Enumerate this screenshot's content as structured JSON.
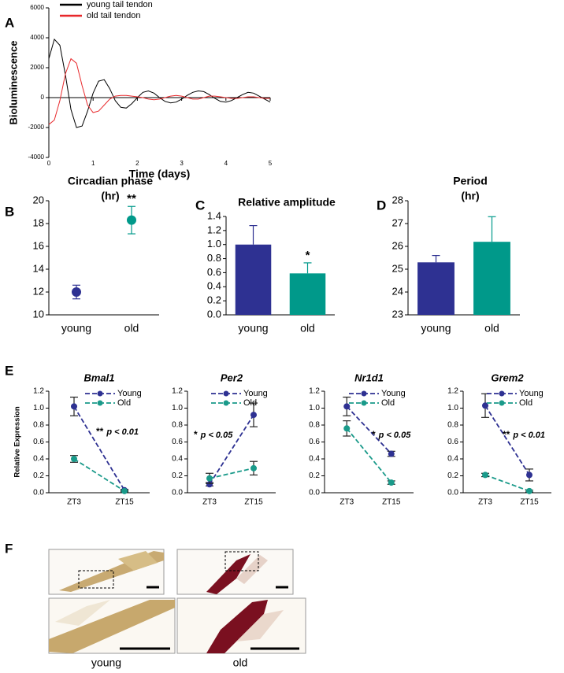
{
  "chart_data": [
    {
      "type": "line",
      "panel": "A",
      "xlabel": "Time (days)",
      "ylabel": "Bioluminescence",
      "x": [
        0,
        0.125,
        0.25,
        0.375,
        0.5,
        0.625,
        0.75,
        0.875,
        1,
        1.125,
        1.25,
        1.375,
        1.5,
        1.625,
        1.75,
        1.875,
        2,
        2.125,
        2.25,
        2.375,
        2.5,
        2.625,
        2.75,
        2.875,
        3,
        3.125,
        3.25,
        3.375,
        3.5,
        3.625,
        3.75,
        3.875,
        4,
        4.125,
        4.25,
        4.375,
        4.5,
        4.625,
        4.75,
        4.875,
        5
      ],
      "series": [
        {
          "name": "young tail tendon",
          "color": "#000000",
          "values": [
            2600,
            3900,
            3500,
            1500,
            -800,
            -2000,
            -1900,
            -900,
            300,
            1100,
            1200,
            600,
            -200,
            -650,
            -700,
            -400,
            0,
            350,
            450,
            300,
            0,
            -250,
            -350,
            -300,
            -100,
            150,
            350,
            450,
            400,
            200,
            -50,
            -250,
            -300,
            -200,
            0,
            200,
            350,
            300,
            100,
            -100,
            -300
          ]
        },
        {
          "name": "old tail tendon",
          "color": "#e8282b",
          "values": [
            -1800,
            -1500,
            -200,
            1600,
            2600,
            2300,
            800,
            -500,
            -1000,
            -900,
            -500,
            -100,
            100,
            150,
            150,
            100,
            50,
            0,
            -100,
            -150,
            -100,
            0,
            100,
            150,
            100,
            0,
            -100,
            -100,
            0,
            100,
            100,
            50,
            0,
            -50,
            -50,
            0,
            50,
            50,
            0,
            -50,
            -50
          ]
        }
      ],
      "xlim": [
        0,
        5
      ],
      "xticks": [
        0,
        1,
        2,
        3,
        4,
        5
      ],
      "ylim": [
        -4000,
        6000
      ],
      "yticks": [
        -4000,
        -2000,
        0,
        2000,
        4000,
        6000
      ]
    },
    {
      "type": "dot",
      "panel": "B",
      "title": "Circadian phase",
      "subtitle": "(hr)",
      "categories": [
        "young",
        "old"
      ],
      "values": [
        12.0,
        18.3
      ],
      "errors": [
        0.6,
        1.2
      ],
      "colors": [
        "#2e3192",
        "#00998a"
      ],
      "stars": [
        null,
        "**"
      ],
      "ylim": [
        10,
        20
      ],
      "yticks": [
        10,
        12,
        14,
        16,
        18,
        20
      ]
    },
    {
      "type": "bar",
      "panel": "C",
      "title": "Relative amplitude",
      "categories": [
        "young",
        "old"
      ],
      "values": [
        1.0,
        0.59
      ],
      "errors": [
        0.27,
        0.15
      ],
      "colors": [
        "#2e3192",
        "#00998a"
      ],
      "stars": [
        null,
        "*"
      ],
      "ylim": [
        0,
        1.4
      ],
      "yticks": [
        {
          "value": 0,
          "label": "0.0"
        },
        0.2,
        0.4,
        0.6,
        0.8,
        {
          "value": 1,
          "label": "1.0"
        },
        1.2,
        1.4
      ]
    },
    {
      "type": "bar",
      "panel": "D",
      "title": "Period",
      "subtitle": "(hr)",
      "categories": [
        "young",
        "old"
      ],
      "values": [
        25.3,
        26.2
      ],
      "errors": [
        0.3,
        1.1
      ],
      "colors": [
        "#2e3192",
        "#00998a"
      ],
      "ylim": [
        23,
        28
      ],
      "yticks": [
        23,
        24,
        25,
        26,
        27,
        28
      ]
    },
    {
      "type": "expr",
      "panel": "E",
      "title": "Bmal1",
      "ylabel": "Relative Expression",
      "stars": "**",
      "p_label": "p < 0.01",
      "categories": [
        "ZT3",
        "ZT15"
      ],
      "series": [
        {
          "name": "Young",
          "color": "#2e3192",
          "values": [
            1.02,
            0.03
          ],
          "errors": [
            0.11,
            0.01
          ]
        },
        {
          "name": "Old",
          "color": "#1a9a8a",
          "values": [
            0.4,
            0.02
          ],
          "errors": [
            0.04,
            0.01
          ]
        }
      ],
      "ylim": [
        0,
        1.2
      ],
      "yticks": [
        {
          "value": 0,
          "label": "0.0"
        },
        0.2,
        0.4,
        0.6,
        0.8,
        {
          "value": 1,
          "label": "1.0"
        },
        1.2
      ]
    },
    {
      "type": "expr",
      "title": "Per2",
      "stars": "*",
      "p_label": "p < 0.05",
      "categories": [
        "ZT3",
        "ZT15"
      ],
      "series": [
        {
          "name": "Young",
          "color": "#2e3192",
          "values": [
            0.1,
            0.92
          ],
          "errors": [
            0.02,
            0.14
          ]
        },
        {
          "name": "Old",
          "color": "#1a9a8a",
          "values": [
            0.17,
            0.29
          ],
          "errors": [
            0.06,
            0.08
          ]
        }
      ],
      "ylim": [
        0,
        1.2
      ],
      "yticks": [
        {
          "value": 0,
          "label": "0.0"
        },
        0.2,
        0.4,
        0.6,
        0.8,
        {
          "value": 1,
          "label": "1.0"
        },
        1.2
      ]
    },
    {
      "type": "expr",
      "title": "Nr1d1",
      "stars": "*",
      "p_label": "p < 0.05",
      "categories": [
        "ZT3",
        "ZT15"
      ],
      "series": [
        {
          "name": "Young",
          "color": "#2e3192",
          "values": [
            1.02,
            0.46
          ],
          "errors": [
            0.11,
            0.03
          ]
        },
        {
          "name": "Old",
          "color": "#1a9a8a",
          "values": [
            0.76,
            0.12
          ],
          "errors": [
            0.09,
            0.02
          ]
        }
      ],
      "ylim": [
        0,
        1.2
      ],
      "yticks": [
        {
          "value": 0,
          "label": "0.0"
        },
        0.2,
        0.4,
        0.6,
        0.8,
        {
          "value": 1,
          "label": "1.0"
        },
        1.2
      ]
    },
    {
      "type": "expr",
      "title": "Grem2",
      "stars": "**",
      "p_label": "p < 0.01",
      "categories": [
        "ZT3",
        "ZT15"
      ],
      "series": [
        {
          "name": "Young",
          "color": "#2e3192",
          "values": [
            1.03,
            0.21
          ],
          "errors": [
            0.14,
            0.07
          ]
        },
        {
          "name": "Old",
          "color": "#1a9a8a",
          "values": [
            0.21,
            0.02
          ],
          "errors": [
            0.02,
            0.01
          ]
        }
      ],
      "ylim": [
        0,
        1.2
      ],
      "yticks": [
        {
          "value": 0,
          "label": "0.0"
        },
        0.2,
        0.4,
        0.6,
        0.8,
        {
          "value": 1,
          "label": "1.0"
        },
        1.2
      ]
    }
  ],
  "histology": {
    "panel": "F",
    "labels": [
      "young",
      "old"
    ]
  }
}
